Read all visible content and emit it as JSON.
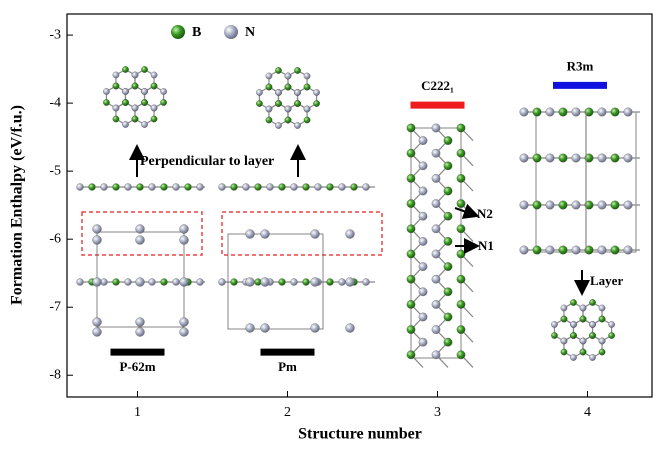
{
  "chart_data": {
    "type": "scatter",
    "marker": "hline",
    "ylabel": "Formation Enthalpy (eV/f.u.)",
    "xlabel": "Structure  number",
    "xlim": [
      0.53,
      4.43
    ],
    "ylim": [
      -8.32,
      -2.69
    ],
    "xticks": [
      1,
      2,
      3,
      4
    ],
    "yticks": [
      -3,
      -4,
      -5,
      -6,
      -7,
      -8
    ],
    "series": [
      {
        "name": "P-62m",
        "color": "#000000",
        "x": [
          1
        ],
        "values": [
          -7.66
        ]
      },
      {
        "name": "Pm",
        "color": "#000000",
        "x": [
          2
        ],
        "values": [
          -7.66
        ]
      },
      {
        "name": "C222₁",
        "color": "#ee1c1c",
        "x": [
          3
        ],
        "values": [
          -4.03
        ]
      },
      {
        "name": "R3m",
        "color": "#1010e0",
        "x": [
          3.95
        ],
        "values": [
          -3.74
        ]
      }
    ],
    "legend": [
      {
        "label": "B",
        "color": "#3a9a22"
      },
      {
        "label": "N",
        "color": "#aeb2c6"
      }
    ],
    "annotations": [
      "Perpendicular to  layer",
      "N2",
      "N1",
      "Layer"
    ]
  }
}
